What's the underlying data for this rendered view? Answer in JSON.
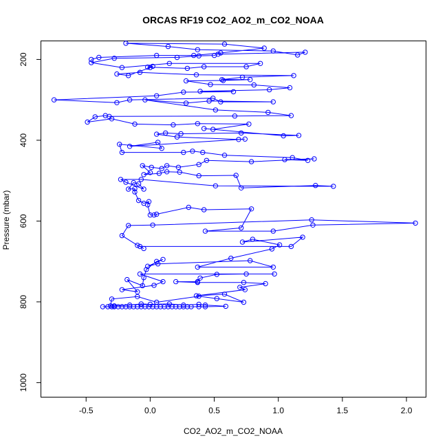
{
  "chart_data": {
    "type": "line",
    "title": "ORCAS RF19 CO2_AO2_m_CO2_NOAA",
    "xlabel": "CO2_AO2_m_CO2_NOAA",
    "ylabel": "Pressure (mbar)",
    "xlim": [
      -0.85,
      2.15
    ],
    "ylim": [
      1035,
      155
    ],
    "y_reversed": true,
    "grid": false,
    "x_ticks": [
      -0.5,
      0.0,
      0.5,
      1.0,
      1.5,
      2.0
    ],
    "x_tick_labels": [
      "-0.5",
      "0.0",
      "0.5",
      "1.0",
      "1.5",
      "2.0"
    ],
    "y_ticks": [
      200,
      400,
      600,
      800,
      1000
    ],
    "y_tick_labels": [
      "200",
      "400",
      "600",
      "800",
      "1000"
    ],
    "series": [
      {
        "color": "#0000ff",
        "marker": "open-circle",
        "points": [
          [
            -0.37,
            812
          ],
          [
            -0.33,
            812
          ],
          [
            -0.3,
            812
          ],
          [
            -0.28,
            812
          ],
          [
            -0.25,
            812
          ],
          [
            -0.22,
            812
          ],
          [
            -0.19,
            812
          ],
          [
            -0.16,
            812
          ],
          [
            -0.13,
            812
          ],
          [
            -0.1,
            812
          ],
          [
            -0.07,
            812
          ],
          [
            -0.04,
            812
          ],
          [
            -0.01,
            812
          ],
          [
            0.02,
            812
          ],
          [
            0.05,
            812
          ],
          [
            0.08,
            812
          ],
          [
            0.11,
            812
          ],
          [
            0.14,
            812
          ],
          [
            0.17,
            812
          ],
          [
            0.2,
            812
          ],
          [
            0.23,
            812
          ],
          [
            0.26,
            812
          ],
          [
            0.29,
            812
          ],
          [
            0.32,
            812
          ],
          [
            0.38,
            812
          ],
          [
            0.43,
            812
          ],
          [
            0.59,
            811
          ],
          [
            0.43,
            808
          ],
          [
            0.38,
            806
          ],
          [
            0.26,
            808
          ],
          [
            0.15,
            805
          ],
          [
            0.0,
            806
          ],
          [
            -0.07,
            805
          ],
          [
            -0.16,
            808
          ],
          [
            -0.28,
            810
          ],
          [
            -0.31,
            810
          ],
          [
            -0.3,
            793
          ],
          [
            -0.1,
            787
          ],
          [
            0.05,
            801
          ],
          [
            0.38,
            786
          ],
          [
            0.52,
            792
          ],
          [
            0.73,
            801
          ],
          [
            0.58,
            781
          ],
          [
            0.36,
            785
          ],
          [
            0.74,
            770
          ],
          [
            0.7,
            764
          ],
          [
            0.9,
            755
          ],
          [
            0.73,
            752
          ],
          [
            0.37,
            752
          ],
          [
            0.2,
            750
          ],
          [
            0.37,
            750
          ],
          [
            0.39,
            741
          ],
          [
            0.52,
            732
          ],
          [
            0.75,
            731
          ],
          [
            0.97,
            731
          ],
          [
            -0.08,
            731
          ],
          [
            0.1,
            750
          ],
          [
            0.03,
            759
          ],
          [
            -0.22,
            770
          ],
          [
            -0.1,
            775
          ],
          [
            -0.18,
            745
          ],
          [
            -0.06,
            760
          ],
          [
            -0.05,
            740
          ],
          [
            -0.03,
            720
          ],
          [
            0.05,
            700
          ],
          [
            0.1,
            695
          ],
          [
            -0.02,
            712
          ],
          [
            0.06,
            706
          ],
          [
            0.78,
            698
          ],
          [
            0.96,
            714
          ],
          [
            0.37,
            714
          ],
          [
            0.63,
            692
          ],
          [
            0.95,
            669
          ],
          [
            1.01,
            659
          ],
          [
            0.8,
            645
          ],
          [
            0.72,
            652
          ],
          [
            1.19,
            640
          ],
          [
            1.1,
            663
          ],
          [
            -0.08,
            663
          ],
          [
            -0.05,
            668
          ],
          [
            -0.1,
            660
          ],
          [
            -0.22,
            636
          ],
          [
            -0.17,
            611
          ],
          [
            0.02,
            610
          ],
          [
            1.26,
            597
          ],
          [
            2.07,
            605
          ],
          [
            1.27,
            610
          ],
          [
            0.96,
            625
          ],
          [
            0.43,
            625
          ],
          [
            0.71,
            617
          ],
          [
            0.79,
            570
          ],
          [
            0.42,
            572
          ],
          [
            0.3,
            566
          ],
          [
            0.05,
            583
          ],
          [
            0.03,
            585
          ],
          [
            0.0,
            585
          ],
          [
            -0.02,
            560
          ],
          [
            -0.01,
            552
          ],
          [
            -0.05,
            556
          ],
          [
            -0.09,
            549
          ],
          [
            -0.12,
            528
          ],
          [
            -0.12,
            520
          ],
          [
            -0.17,
            521
          ],
          [
            -0.13,
            505
          ],
          [
            -0.09,
            508
          ],
          [
            -0.05,
            521
          ],
          [
            -0.19,
            504
          ],
          [
            -0.23,
            497
          ],
          [
            -0.07,
            497
          ],
          [
            0.51,
            513
          ],
          [
            1.43,
            514
          ],
          [
            1.29,
            512
          ],
          [
            0.71,
            518
          ],
          [
            0.67,
            487
          ],
          [
            0.38,
            488
          ],
          [
            0.23,
            479
          ],
          [
            0.13,
            478
          ],
          [
            0.07,
            482
          ],
          [
            -0.05,
            485
          ],
          [
            0.0,
            480
          ],
          [
            -0.06,
            463
          ],
          [
            0.01,
            467
          ],
          [
            0.09,
            470
          ],
          [
            0.13,
            463
          ],
          [
            0.22,
            467
          ],
          [
            0.38,
            460
          ],
          [
            0.44,
            450
          ],
          [
            0.79,
            453
          ],
          [
            1.28,
            446
          ],
          [
            1.05,
            448
          ],
          [
            1.23,
            450
          ],
          [
            1.11,
            443
          ],
          [
            0.58,
            437
          ],
          [
            0.41,
            430
          ],
          [
            0.33,
            427
          ],
          [
            0.26,
            430
          ],
          [
            -0.22,
            430
          ],
          [
            -0.24,
            410
          ],
          [
            0.09,
            420
          ],
          [
            0.06,
            405
          ],
          [
            -0.16,
            415
          ],
          [
            0.74,
            397
          ],
          [
            0.69,
            398
          ],
          [
            0.21,
            392
          ],
          [
            0.05,
            385
          ],
          [
            0.12,
            382
          ],
          [
            0.24,
            384
          ],
          [
            0.71,
            382
          ],
          [
            1.16,
            388
          ],
          [
            1.04,
            389
          ],
          [
            0.42,
            371
          ],
          [
            0.49,
            373
          ],
          [
            0.77,
            360
          ],
          [
            0.37,
            359
          ],
          [
            0.18,
            362
          ],
          [
            -0.12,
            360
          ],
          [
            -0.3,
            347
          ],
          [
            -0.49,
            355
          ],
          [
            -0.43,
            342
          ],
          [
            -0.35,
            339
          ],
          [
            -0.32,
            341
          ],
          [
            0.66,
            340
          ],
          [
            1.1,
            339
          ],
          [
            0.92,
            331
          ],
          [
            0.51,
            325
          ],
          [
            -0.04,
            300
          ],
          [
            0.28,
            308
          ],
          [
            0.46,
            303
          ],
          [
            0.96,
            305
          ],
          [
            0.55,
            305
          ],
          [
            0.49,
            296
          ],
          [
            -0.16,
            300
          ],
          [
            -0.26,
            307
          ],
          [
            -0.75,
            300
          ],
          [
            0.05,
            290
          ],
          [
            0.26,
            281
          ],
          [
            0.65,
            280
          ],
          [
            0.39,
            279
          ],
          [
            0.93,
            275
          ],
          [
            1.09,
            270
          ],
          [
            0.81,
            263
          ],
          [
            0.47,
            262
          ],
          [
            0.28,
            253
          ],
          [
            0.57,
            252
          ],
          [
            0.78,
            250
          ],
          [
            0.56,
            250
          ],
          [
            0.72,
            244
          ],
          [
            1.12,
            240
          ],
          [
            0.36,
            238
          ],
          [
            -0.08,
            232
          ],
          [
            -0.26,
            236
          ],
          [
            -0.17,
            240
          ],
          [
            0.0,
            220
          ],
          [
            0.02,
            217
          ],
          [
            -0.02,
            219
          ],
          [
            0.29,
            222
          ],
          [
            0.42,
            218
          ],
          [
            0.75,
            218
          ],
          [
            0.86,
            210
          ],
          [
            0.15,
            210
          ],
          [
            -0.22,
            220
          ],
          [
            -0.46,
            208
          ],
          [
            -0.28,
            197
          ],
          [
            0.21,
            195
          ],
          [
            0.38,
            191
          ],
          [
            0.5,
            190
          ],
          [
            0.53,
            187
          ],
          [
            1.21,
            182
          ],
          [
            1.15,
            189
          ],
          [
            0.96,
            179
          ],
          [
            0.37,
            176
          ],
          [
            0.14,
            168
          ],
          [
            -0.19,
            160
          ],
          [
            0.58,
            162
          ],
          [
            0.89,
            172
          ],
          [
            0.55,
            184
          ],
          [
            0.34,
            190
          ],
          [
            0.05,
            190
          ],
          [
            -0.4,
            195
          ],
          [
            -0.46,
            200
          ]
        ]
      }
    ]
  }
}
